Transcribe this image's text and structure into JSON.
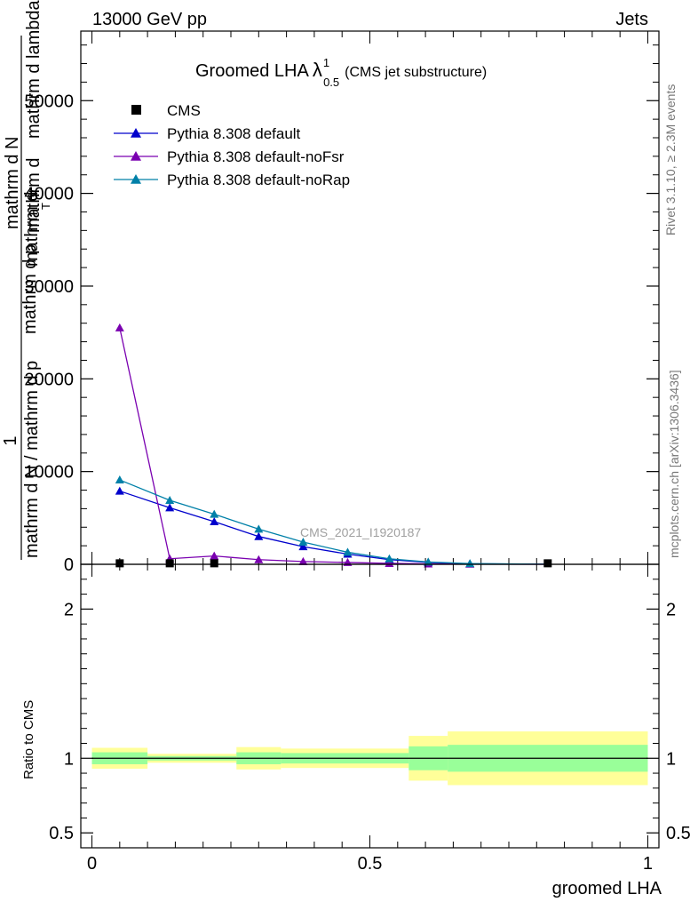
{
  "header": {
    "left": "13000 GeV pp",
    "right": "Jets"
  },
  "side_labels": {
    "rivet": "Rivet 3.1.10, ≥ 2.3M events",
    "mcplots": "mcplots.cern.ch [arXiv:1306.3436]"
  },
  "watermark": "CMS_2021_I1920187",
  "chart_data": [
    {
      "type": "line",
      "title_main": "Groomed LHA",
      "title_lambda": "λ",
      "title_sup": "1",
      "title_sub": "0.5",
      "title_rest": "(CMS jet substructure)",
      "ylabel_prefix": "1",
      "ylabel_lines": [
        "mathrm d N / mathrm d p",
        "mathrm d p",
        "mathrm d",
        "mathrm d",
        "mathrm d N",
        "mathrm d lambda",
        "T"
      ],
      "ylim": [
        0,
        57500
      ],
      "yticks": [
        0,
        10000,
        20000,
        30000,
        40000,
        50000
      ],
      "ytick_labels": [
        "0",
        "10000",
        "20000",
        "30000",
        "40000",
        "50000"
      ],
      "xlim": [
        -0.02,
        1.02
      ],
      "x": [
        0.05,
        0.14,
        0.22,
        0.3,
        0.38,
        0.46,
        0.535,
        0.605,
        0.68,
        0.82
      ],
      "series": [
        {
          "name": "CMS",
          "marker": "square",
          "color": "#000000",
          "values": [
            60,
            60,
            60,
            0,
            0,
            0,
            0,
            0,
            0,
            60
          ]
        },
        {
          "name": "Pythia 8.308 default",
          "marker": "triangle",
          "color": "#0000cc",
          "values": [
            7900,
            6100,
            4600,
            3000,
            1900,
            1100,
            500,
            200,
            60,
            10
          ]
        },
        {
          "name": "Pythia 8.308 default-noFsr",
          "marker": "triangle",
          "color": "#7a00b0",
          "values": [
            25500,
            600,
            900,
            500,
            300,
            200,
            100,
            50,
            20,
            5
          ]
        },
        {
          "name": "Pythia 8.308 default-noRap",
          "marker": "triangle",
          "color": "#0080a8",
          "values": [
            9100,
            6900,
            5400,
            3800,
            2400,
            1300,
            600,
            250,
            80,
            15
          ]
        }
      ]
    },
    {
      "type": "area",
      "ylabel": "Ratio to CMS",
      "xlabel": "groomed LHA",
      "ylim": [
        0.4,
        2.3
      ],
      "yticks": [
        0.5,
        1,
        2
      ],
      "ytick_labels": [
        "0.5",
        "1",
        "2"
      ],
      "xticks": [
        0,
        0.5,
        1
      ],
      "xtick_labels": [
        "0",
        "0.5",
        "1"
      ],
      "bins": [
        {
          "x0": 0.0,
          "x1": 0.1,
          "inner": [
            0.96,
            1.04
          ],
          "outer": [
            0.93,
            1.07
          ]
        },
        {
          "x0": 0.1,
          "x1": 0.26,
          "inner": [
            0.985,
            1.015
          ],
          "outer": [
            0.97,
            1.03
          ]
        },
        {
          "x0": 0.26,
          "x1": 0.34,
          "inner": [
            0.96,
            1.04
          ],
          "outer": [
            0.925,
            1.075
          ]
        },
        {
          "x0": 0.34,
          "x1": 0.57,
          "inner": [
            0.965,
            1.035
          ],
          "outer": [
            0.935,
            1.065
          ]
        },
        {
          "x0": 0.57,
          "x1": 0.64,
          "inner": [
            0.92,
            1.08
          ],
          "outer": [
            0.85,
            1.15
          ]
        },
        {
          "x0": 0.64,
          "x1": 1.0,
          "inner": [
            0.91,
            1.09
          ],
          "outer": [
            0.82,
            1.18
          ]
        }
      ],
      "reference": 1
    }
  ]
}
